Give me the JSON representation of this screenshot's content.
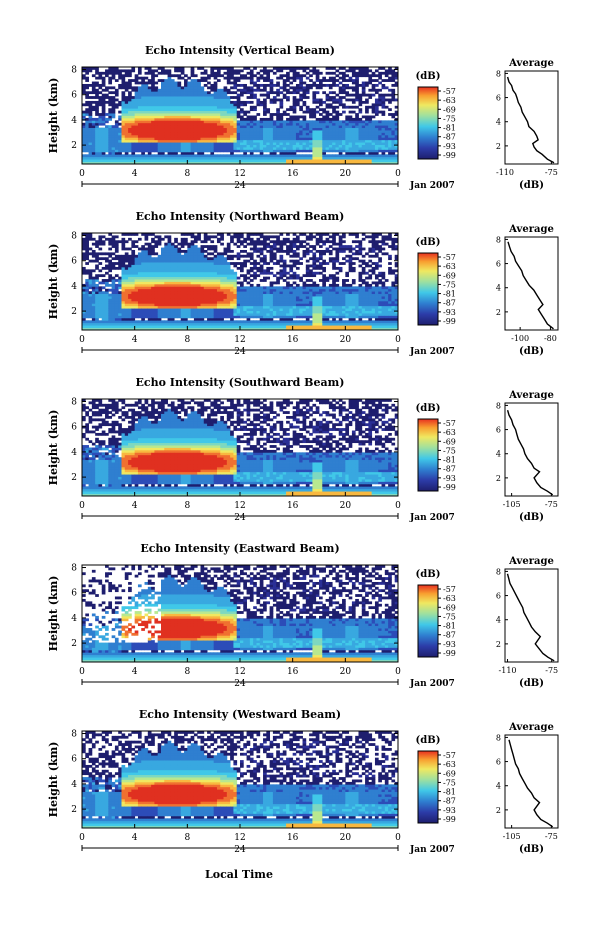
{
  "figure": {
    "xlabel": "Local Time",
    "date_label": "Jan 2007",
    "colorbar_unit": "(dB)",
    "avg_title": "Average",
    "avg_xlabel": "(dB)",
    "panel_ylabel": "Height (km)"
  },
  "chart_data": [
    {
      "type": "heatmap",
      "title": "Echo Intensity (Vertical Beam)",
      "ylabel": "Height (km)",
      "x_ticks": [
        "0",
        "4",
        "8",
        "12",
        "16",
        "20",
        "0"
      ],
      "x_day_label": "24",
      "y_ticks": [
        "2",
        "4",
        "6",
        "8"
      ],
      "ylim": [
        0.5,
        8.2
      ],
      "colorbar_ticks": [
        "-57",
        "-63",
        "-69",
        "-75",
        "-81",
        "-87",
        "-93",
        "-99"
      ],
      "avg_xticks": [
        "-110",
        "-75"
      ],
      "avg_xlim": [
        -110,
        -70
      ],
      "avg_profile": [
        [
          -73,
          0.6
        ],
        [
          -78,
          0.9
        ],
        [
          -82,
          1.3
        ],
        [
          -86,
          1.6
        ],
        [
          -88,
          1.9
        ],
        [
          -89,
          2.2
        ],
        [
          -85,
          2.5
        ],
        [
          -86,
          2.8
        ],
        [
          -88,
          3.2
        ],
        [
          -92,
          3.6
        ],
        [
          -93,
          4.0
        ],
        [
          -95,
          4.4
        ],
        [
          -97,
          4.8
        ],
        [
          -98,
          5.2
        ],
        [
          -100,
          5.6
        ],
        [
          -101,
          6.0
        ],
        [
          -102,
          6.3
        ],
        [
          -104,
          6.6
        ],
        [
          -105,
          7.0
        ],
        [
          -107,
          7.3
        ],
        [
          -108,
          7.7
        ]
      ]
    },
    {
      "type": "heatmap",
      "title": "Echo Intensity (Northward Beam)",
      "ylabel": "Height (km)",
      "x_ticks": [
        "0",
        "4",
        "8",
        "12",
        "16",
        "20",
        "0"
      ],
      "x_day_label": "24",
      "y_ticks": [
        "2",
        "4",
        "6",
        "8"
      ],
      "ylim": [
        0.5,
        8.2
      ],
      "colorbar_ticks": [
        "-57",
        "-63",
        "-69",
        "-75",
        "-81",
        "-87",
        "-93",
        "-99"
      ],
      "avg_xticks": [
        "-100",
        "-80"
      ],
      "avg_xlim": [
        -110,
        -75
      ],
      "avg_profile": [
        [
          -78,
          0.6
        ],
        [
          -82,
          1.0
        ],
        [
          -84,
          1.4
        ],
        [
          -86,
          1.8
        ],
        [
          -88,
          2.2
        ],
        [
          -85,
          2.6
        ],
        [
          -87,
          3.0
        ],
        [
          -89,
          3.4
        ],
        [
          -91,
          3.8
        ],
        [
          -94,
          4.2
        ],
        [
          -96,
          4.6
        ],
        [
          -98,
          5.0
        ],
        [
          -99,
          5.4
        ],
        [
          -101,
          5.8
        ],
        [
          -103,
          6.2
        ],
        [
          -104,
          6.6
        ],
        [
          -106,
          7.0
        ],
        [
          -107,
          7.4
        ],
        [
          -108,
          7.8
        ]
      ]
    },
    {
      "type": "heatmap",
      "title": "Echo Intensity (Southward Beam)",
      "ylabel": "Height (km)",
      "x_ticks": [
        "0",
        "4",
        "8",
        "12",
        "16",
        "20",
        "0"
      ],
      "x_day_label": "24",
      "y_ticks": [
        "2",
        "4",
        "6",
        "8"
      ],
      "ylim": [
        0.5,
        8.2
      ],
      "colorbar_ticks": [
        "-57",
        "-63",
        "-69",
        "-75",
        "-81",
        "-87",
        "-93",
        "-99"
      ],
      "avg_xticks": [
        "-105",
        "-75"
      ],
      "avg_xlim": [
        -110,
        -70
      ],
      "avg_profile": [
        [
          -74,
          0.6
        ],
        [
          -78,
          0.9
        ],
        [
          -83,
          1.2
        ],
        [
          -86,
          1.6
        ],
        [
          -88,
          2.0
        ],
        [
          -84,
          2.5
        ],
        [
          -88,
          2.8
        ],
        [
          -90,
          3.2
        ],
        [
          -93,
          3.6
        ],
        [
          -95,
          4.0
        ],
        [
          -96,
          4.4
        ],
        [
          -98,
          4.8
        ],
        [
          -100,
          5.2
        ],
        [
          -101,
          5.6
        ],
        [
          -102,
          6.0
        ],
        [
          -104,
          6.4
        ],
        [
          -105,
          6.8
        ],
        [
          -107,
          7.2
        ],
        [
          -108,
          7.6
        ]
      ]
    },
    {
      "type": "heatmap",
      "title": "Echo Intensity (Eastward Beam)",
      "ylabel": "Height (km)",
      "x_ticks": [
        "0",
        "4",
        "8",
        "12",
        "16",
        "20",
        "0"
      ],
      "x_day_label": "24",
      "y_ticks": [
        "2",
        "4",
        "6",
        "8"
      ],
      "ylim": [
        0.5,
        8.2
      ],
      "colorbar_ticks": [
        "-57",
        "-63",
        "-69",
        "-75",
        "-81",
        "-87",
        "-93",
        "-99"
      ],
      "avg_xticks": [
        "-110",
        "-75"
      ],
      "avg_xlim": [
        -112,
        -70
      ],
      "avg_profile": [
        [
          -73,
          0.6
        ],
        [
          -78,
          0.9
        ],
        [
          -82,
          1.2
        ],
        [
          -85,
          1.6
        ],
        [
          -88,
          2.0
        ],
        [
          -84,
          2.6
        ],
        [
          -88,
          3.0
        ],
        [
          -91,
          3.4
        ],
        [
          -93,
          3.8
        ],
        [
          -95,
          4.2
        ],
        [
          -97,
          4.6
        ],
        [
          -98,
          5.0
        ],
        [
          -100,
          5.4
        ],
        [
          -102,
          5.8
        ],
        [
          -104,
          6.2
        ],
        [
          -106,
          6.6
        ],
        [
          -108,
          7.0
        ],
        [
          -109,
          7.4
        ],
        [
          -110,
          7.8
        ]
      ]
    },
    {
      "type": "heatmap",
      "title": "Echo Intensity (Westward Beam)",
      "ylabel": "Height (km)",
      "x_ticks": [
        "0",
        "4",
        "8",
        "12",
        "16",
        "20",
        "0"
      ],
      "x_day_label": "24",
      "y_ticks": [
        "2",
        "4",
        "6",
        "8"
      ],
      "ylim": [
        0.5,
        8.2
      ],
      "colorbar_ticks": [
        "-57",
        "-63",
        "-69",
        "-75",
        "-81",
        "-87",
        "-93",
        "-99"
      ],
      "avg_xticks": [
        "-105",
        "-75"
      ],
      "avg_xlim": [
        -110,
        -70
      ],
      "avg_profile": [
        [
          -74,
          0.6
        ],
        [
          -78,
          0.9
        ],
        [
          -83,
          1.2
        ],
        [
          -86,
          1.6
        ],
        [
          -88,
          2.0
        ],
        [
          -84,
          2.6
        ],
        [
          -88,
          3.0
        ],
        [
          -90,
          3.4
        ],
        [
          -93,
          3.8
        ],
        [
          -95,
          4.2
        ],
        [
          -97,
          4.6
        ],
        [
          -99,
          5.0
        ],
        [
          -100,
          5.4
        ],
        [
          -102,
          5.8
        ],
        [
          -103,
          6.2
        ],
        [
          -104,
          6.6
        ],
        [
          -105,
          7.0
        ],
        [
          -106,
          7.4
        ],
        [
          -107,
          7.8
        ]
      ]
    }
  ]
}
